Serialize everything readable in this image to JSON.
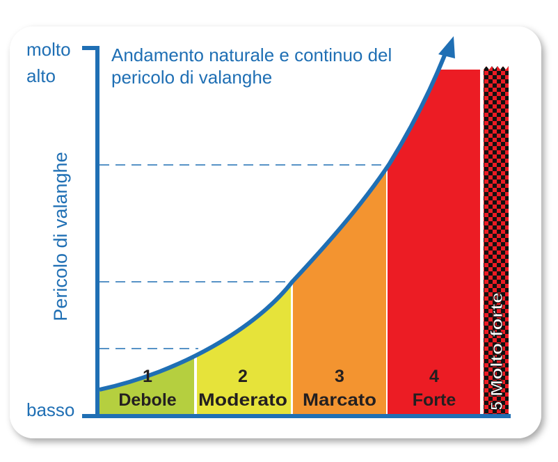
{
  "title": [
    "Andamento naturale e continuo del",
    "pericolo di valanghe"
  ],
  "y_axis": {
    "title": "Pericolo di valanghe",
    "top_label": [
      "molto",
      "alto"
    ],
    "bottom_label": "basso"
  },
  "levels": [
    {
      "number": "1",
      "name": "Debole"
    },
    {
      "number": "2",
      "name": "Moderato"
    },
    {
      "number": "3",
      "name": "Marcato"
    },
    {
      "number": "4",
      "name": "Forte"
    },
    {
      "number": "5",
      "name": "Molto forte"
    }
  ]
}
